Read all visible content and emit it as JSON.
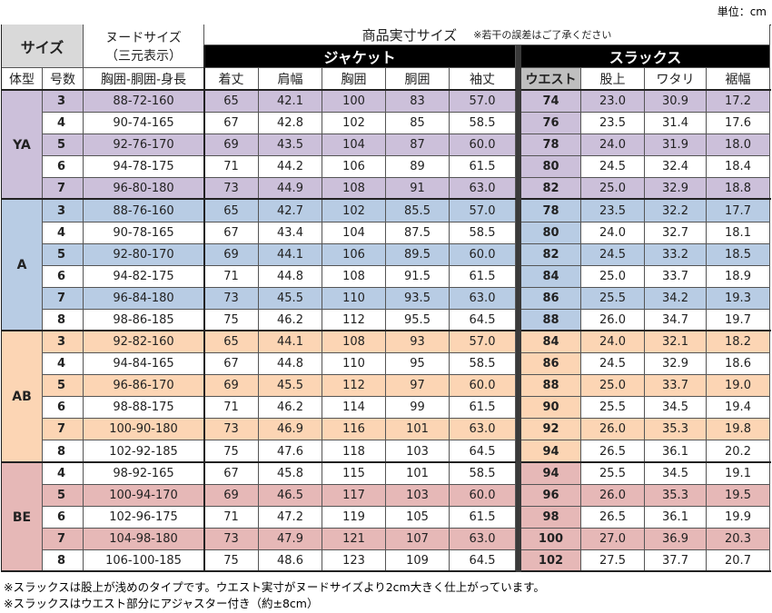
{
  "unit": "単位：cm",
  "header": {
    "size": "サイズ",
    "nude_title": "ヌードサイズ",
    "nude_sub": "（三元表示）",
    "product": "商品実寸サイズ",
    "product_note": "※若干の誤差はご了承ください",
    "jacket": "ジャケット",
    "slacks": "スラックス",
    "columns": [
      "体型",
      "号数",
      "胸囲-胴囲-身長",
      "着丈",
      "肩幅",
      "胸囲",
      "胴囲",
      "袖丈",
      "ウエスト",
      "股上",
      "ワタリ",
      "裾幅"
    ]
  },
  "groups": [
    {
      "type": "YA",
      "rows": [
        [
          "3",
          "88-72-160",
          "65",
          "42.1",
          "100",
          "83",
          "57.0",
          "74",
          "23.0",
          "30.9",
          "17.2"
        ],
        [
          "4",
          "90-74-165",
          "67",
          "42.8",
          "102",
          "85",
          "58.5",
          "76",
          "23.5",
          "31.4",
          "17.6"
        ],
        [
          "5",
          "92-76-170",
          "69",
          "43.5",
          "104",
          "87",
          "60.0",
          "78",
          "24.0",
          "31.9",
          "18.0"
        ],
        [
          "6",
          "94-78-175",
          "71",
          "44.2",
          "106",
          "89",
          "61.5",
          "80",
          "24.5",
          "32.4",
          "18.4"
        ],
        [
          "7",
          "96-80-180",
          "73",
          "44.9",
          "108",
          "91",
          "63.0",
          "82",
          "25.0",
          "32.9",
          "18.8"
        ]
      ]
    },
    {
      "type": "A",
      "rows": [
        [
          "3",
          "88-76-160",
          "65",
          "42.7",
          "102",
          "85.5",
          "57.0",
          "78",
          "23.5",
          "32.2",
          "17.7"
        ],
        [
          "4",
          "90-78-165",
          "67",
          "43.4",
          "104",
          "87.5",
          "58.5",
          "80",
          "24.0",
          "32.7",
          "18.1"
        ],
        [
          "5",
          "92-80-170",
          "69",
          "44.1",
          "106",
          "89.5",
          "60.0",
          "82",
          "24.5",
          "33.2",
          "18.5"
        ],
        [
          "6",
          "94-82-175",
          "71",
          "44.8",
          "108",
          "91.5",
          "61.5",
          "84",
          "25.0",
          "33.7",
          "18.9"
        ],
        [
          "7",
          "96-84-180",
          "73",
          "45.5",
          "110",
          "93.5",
          "63.0",
          "86",
          "25.5",
          "34.2",
          "19.3"
        ],
        [
          "8",
          "98-86-185",
          "75",
          "46.2",
          "112",
          "95.5",
          "64.5",
          "88",
          "26.0",
          "34.7",
          "19.7"
        ]
      ]
    },
    {
      "type": "AB",
      "rows": [
        [
          "3",
          "92-82-160",
          "65",
          "44.1",
          "108",
          "93",
          "57.0",
          "84",
          "24.0",
          "32.1",
          "18.2"
        ],
        [
          "4",
          "94-84-165",
          "67",
          "44.8",
          "110",
          "95",
          "58.5",
          "86",
          "24.5",
          "32.9",
          "18.6"
        ],
        [
          "5",
          "96-86-170",
          "69",
          "45.5",
          "112",
          "97",
          "60.0",
          "88",
          "25.0",
          "33.7",
          "19.0"
        ],
        [
          "6",
          "98-88-175",
          "71",
          "46.2",
          "114",
          "99",
          "61.5",
          "90",
          "25.5",
          "34.5",
          "19.4"
        ],
        [
          "7",
          "100-90-180",
          "73",
          "46.9",
          "116",
          "101",
          "63.0",
          "92",
          "26.0",
          "35.3",
          "19.8"
        ],
        [
          "8",
          "102-92-185",
          "75",
          "47.6",
          "118",
          "103",
          "64.5",
          "94",
          "26.5",
          "36.1",
          "20.2"
        ]
      ]
    },
    {
      "type": "BE",
      "rows": [
        [
          "4",
          "98-92-165",
          "67",
          "45.8",
          "115",
          "101",
          "58.5",
          "94",
          "25.5",
          "34.5",
          "19.1"
        ],
        [
          "5",
          "100-94-170",
          "69",
          "46.5",
          "117",
          "103",
          "60.0",
          "96",
          "26.0",
          "35.3",
          "19.5"
        ],
        [
          "6",
          "102-96-175",
          "71",
          "47.2",
          "119",
          "105",
          "61.5",
          "98",
          "26.5",
          "36.1",
          "19.9"
        ],
        [
          "7",
          "104-98-180",
          "73",
          "47.9",
          "121",
          "107",
          "63.0",
          "100",
          "27.0",
          "36.9",
          "20.3"
        ],
        [
          "8",
          "106-100-185",
          "75",
          "48.6",
          "123",
          "109",
          "64.5",
          "102",
          "27.5",
          "37.7",
          "20.7"
        ]
      ]
    }
  ],
  "notes": [
    "※スラックスは股上が浅めのタイプです。ウエスト実寸がヌードサイズより2cm大きく仕上がっています。",
    "※スラックスはウエスト部分にアジャスター付き（約±8cm）"
  ]
}
